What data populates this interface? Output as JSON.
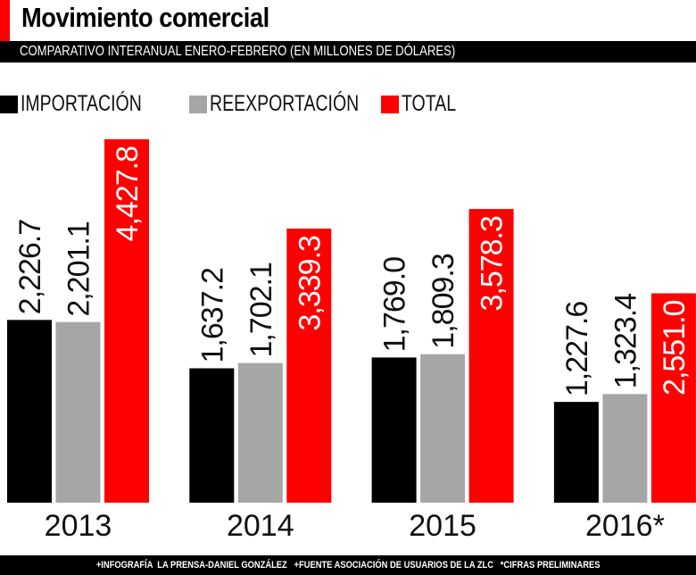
{
  "title": "Movimiento comercial",
  "subtitle": "COMPARATIVO INTERANUAL ENERO-FEBRERO (EN MILLONES DE DÓLARES)",
  "footer": "+INFOGRAFÍA  LA PRENSA-DANIEL GONZÁLEZ   +FUENTE ASOCIACIÓN DE USUARIOS DE LA ZLC   *CIFRAS PRELIMINARES",
  "chart_data": {
    "type": "bar",
    "categories": [
      "2013",
      "2014",
      "2015",
      "2016*"
    ],
    "series": [
      {
        "name": "IMPORTACIÓN",
        "color": "#000000",
        "values": [
          2226.7,
          1637.2,
          1769.0,
          1227.6
        ],
        "labels": [
          "2,226.7",
          "1,637.2",
          "1,769.0",
          "1,227.6"
        ]
      },
      {
        "name": "REEXPORTACIÓN",
        "color": "#a6a6a6",
        "values": [
          2201.1,
          1702.1,
          1809.3,
          1323.4
        ],
        "labels": [
          "2,201.1",
          "1,702.1",
          "1,809.3",
          "1,323.4"
        ]
      },
      {
        "name": "TOTAL",
        "color": "#ff0000",
        "values": [
          4427.8,
          3339.3,
          3578.3,
          2551.0
        ],
        "labels": [
          "4,427.8",
          "3,339.3",
          "3,578.3",
          "2,551.0"
        ]
      }
    ],
    "legend_position": "top-left",
    "grid": false
  }
}
